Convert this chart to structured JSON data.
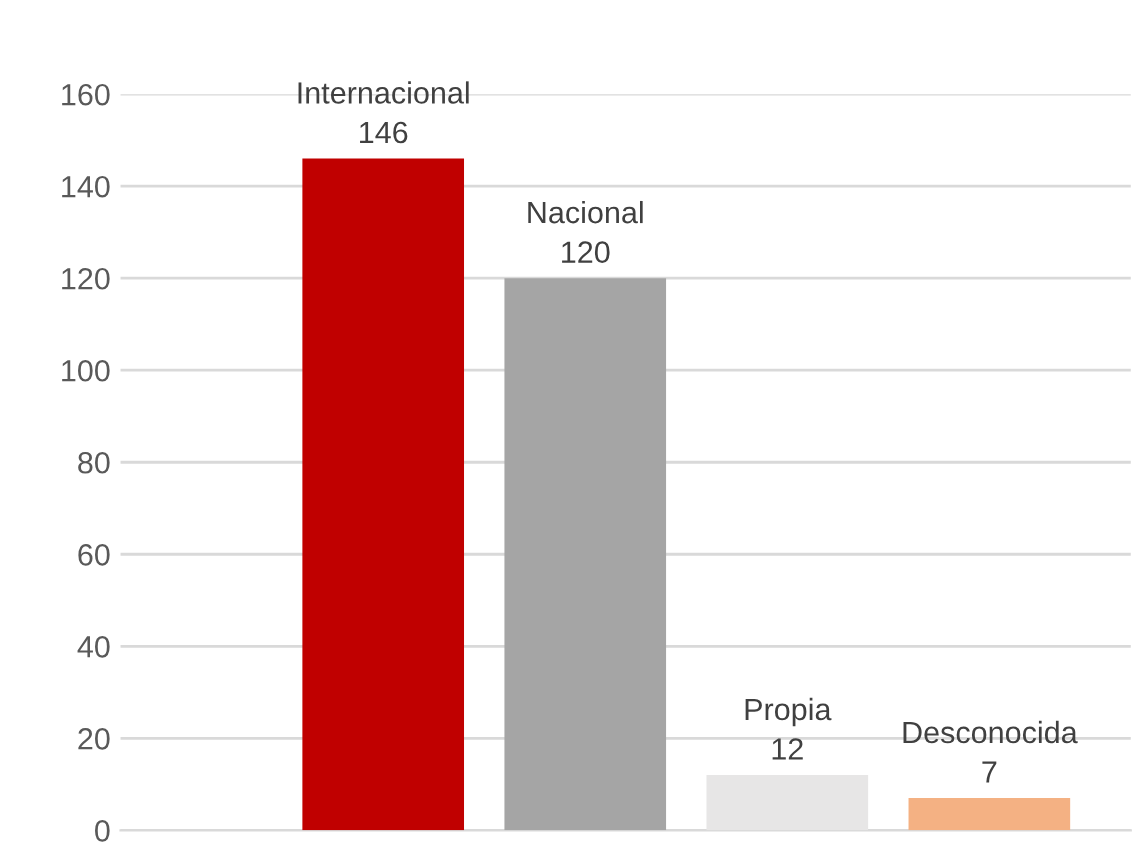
{
  "chart_data": {
    "type": "bar",
    "categories": [
      "Internacional",
      "Nacional",
      "Propia",
      "Desconocida"
    ],
    "values": [
      146,
      120,
      12,
      7
    ],
    "colors": [
      "#c00000",
      "#a5a5a5",
      "#e7e6e6",
      "#f4b183"
    ],
    "ylim": [
      0,
      160
    ],
    "yticks": [
      0,
      20,
      40,
      60,
      80,
      100,
      120,
      140,
      160
    ],
    "grid": "y",
    "data_labels": true
  }
}
